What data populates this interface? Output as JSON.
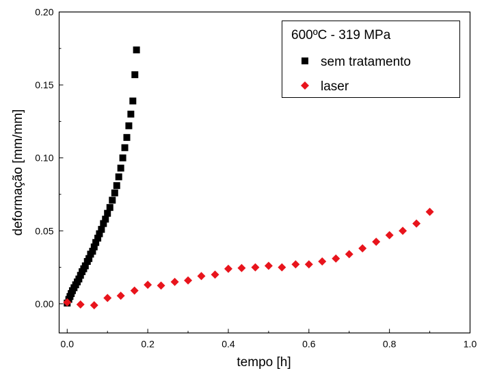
{
  "chart_data": {
    "type": "scatter",
    "xlabel": "tempo [h]",
    "ylabel": "deformação [mm/mm]",
    "xlim": [
      -0.02,
      1.0
    ],
    "ylim": [
      -0.02,
      0.2
    ],
    "xticks": [
      0.0,
      0.2,
      0.4,
      0.6,
      0.8,
      1.0
    ],
    "xtick_labels": [
      "0.0",
      "0.2",
      "0.4",
      "0.6",
      "0.8",
      "1.0"
    ],
    "yticks": [
      0.0,
      0.05,
      0.1,
      0.15,
      0.2
    ],
    "ytick_labels": [
      "0.00",
      "0.05",
      "0.10",
      "0.15",
      "0.20"
    ],
    "grid": false,
    "legend": {
      "title": "600ºC - 319 MPa",
      "placement": "top-right",
      "entries": [
        "sem tratamento",
        "laser"
      ]
    },
    "series": [
      {
        "name": "sem tratamento",
        "marker": "square",
        "color": "#000000",
        "points": [
          [
            0.0,
            0.0005
          ],
          [
            0.004,
            0.003
          ],
          [
            0.007,
            0.005
          ],
          [
            0.01,
            0.007
          ],
          [
            0.013,
            0.009
          ],
          [
            0.017,
            0.011
          ],
          [
            0.021,
            0.013
          ],
          [
            0.025,
            0.015
          ],
          [
            0.029,
            0.017
          ],
          [
            0.033,
            0.0195
          ],
          [
            0.037,
            0.022
          ],
          [
            0.041,
            0.024
          ],
          [
            0.045,
            0.026
          ],
          [
            0.05,
            0.029
          ],
          [
            0.054,
            0.031
          ],
          [
            0.058,
            0.034
          ],
          [
            0.063,
            0.036
          ],
          [
            0.067,
            0.039
          ],
          [
            0.071,
            0.042
          ],
          [
            0.076,
            0.045
          ],
          [
            0.08,
            0.048
          ],
          [
            0.085,
            0.051
          ],
          [
            0.09,
            0.055
          ],
          [
            0.095,
            0.058
          ],
          [
            0.1,
            0.062
          ],
          [
            0.106,
            0.066
          ],
          [
            0.112,
            0.071
          ],
          [
            0.118,
            0.076
          ],
          [
            0.123,
            0.081
          ],
          [
            0.128,
            0.087
          ],
          [
            0.133,
            0.093
          ],
          [
            0.138,
            0.1
          ],
          [
            0.143,
            0.107
          ],
          [
            0.148,
            0.114
          ],
          [
            0.153,
            0.122
          ],
          [
            0.158,
            0.13
          ],
          [
            0.163,
            0.139
          ],
          [
            0.168,
            0.157
          ],
          [
            0.172,
            0.174
          ]
        ]
      },
      {
        "name": "laser",
        "marker": "diamond",
        "color": "#e8141c",
        "points": [
          [
            0.0,
            0.001
          ],
          [
            0.033,
            -0.0005
          ],
          [
            0.067,
            -0.001
          ],
          [
            0.1,
            0.004
          ],
          [
            0.133,
            0.0055
          ],
          [
            0.167,
            0.009
          ],
          [
            0.2,
            0.013
          ],
          [
            0.233,
            0.0125
          ],
          [
            0.267,
            0.015
          ],
          [
            0.3,
            0.016
          ],
          [
            0.333,
            0.019
          ],
          [
            0.367,
            0.02
          ],
          [
            0.4,
            0.024
          ],
          [
            0.433,
            0.0245
          ],
          [
            0.467,
            0.025
          ],
          [
            0.5,
            0.026
          ],
          [
            0.533,
            0.025
          ],
          [
            0.567,
            0.027
          ],
          [
            0.6,
            0.027
          ],
          [
            0.633,
            0.029
          ],
          [
            0.667,
            0.031
          ],
          [
            0.7,
            0.034
          ],
          [
            0.733,
            0.038
          ],
          [
            0.767,
            0.0425
          ],
          [
            0.8,
            0.047
          ],
          [
            0.833,
            0.05
          ],
          [
            0.867,
            0.055
          ],
          [
            0.9,
            0.063
          ]
        ]
      }
    ]
  }
}
